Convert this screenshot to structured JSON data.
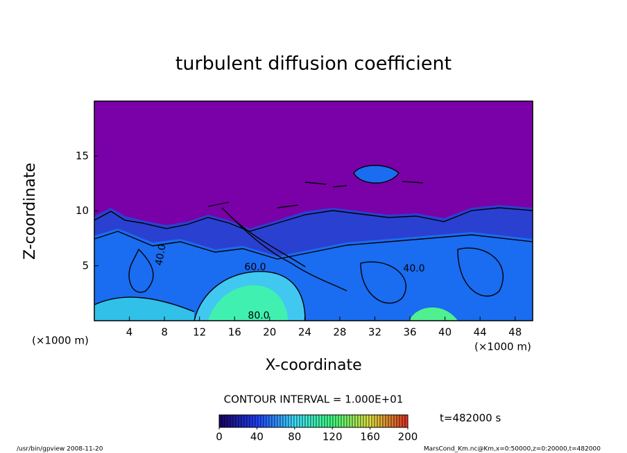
{
  "chart_data": {
    "type": "contour",
    "title": "turbulent diffusion coefficient",
    "x_label": "X-coordinate",
    "y_label": "Z-coordinate",
    "x_unit": "(×1000 m)",
    "y_unit": "(×1000 m)",
    "xlim": [
      0,
      50
    ],
    "xticks": [
      4,
      8,
      12,
      16,
      20,
      24,
      28,
      32,
      36,
      40,
      44,
      48
    ],
    "ylim": [
      0,
      20
    ],
    "yticks": [
      5,
      10,
      15
    ],
    "contour_labels": [
      "40.0",
      "60.0",
      "40.0",
      "80.0"
    ],
    "contour_interval_text": "CONTOUR INTERVAL = 1.000E+01",
    "time_text": "t=482000 s",
    "colorbar": {
      "clim": [
        0,
        200
      ],
      "ticks": [
        0,
        40,
        80,
        120,
        160,
        200
      ],
      "colormap": [
        "#1a0060",
        "#2040ff",
        "#40e0ff",
        "#40ff80",
        "#e0e040",
        "#e03020"
      ]
    },
    "background_color": "#7a00a8",
    "footer_left": "/usr/bin/gpview  2008-11-20",
    "footer_right": "MarsCond_Km.nc@Km,x=0:50000,z=0:20000,t=482000"
  }
}
